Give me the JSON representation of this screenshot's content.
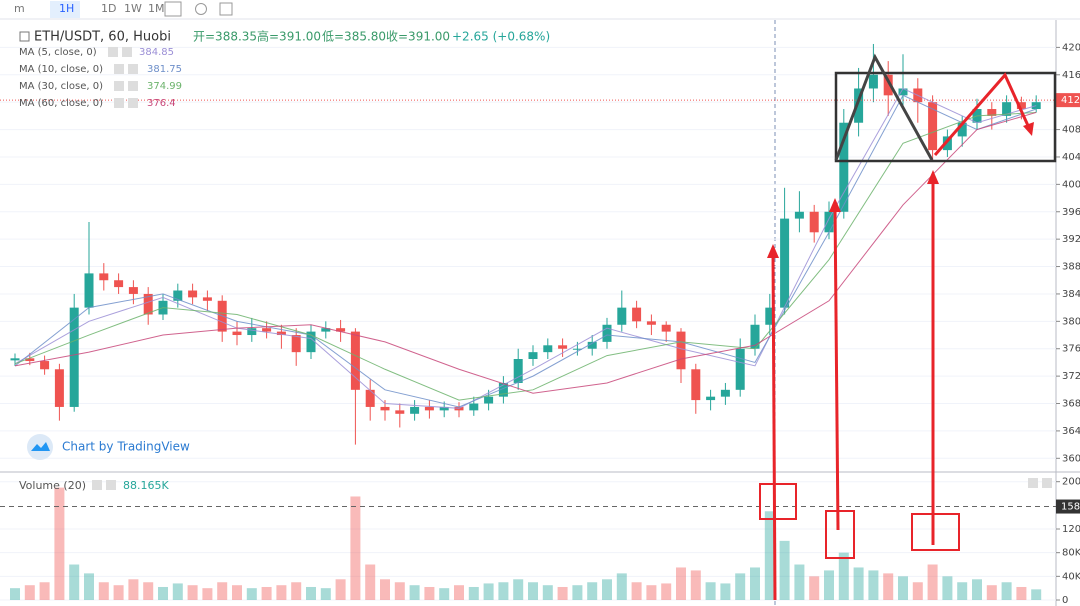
{
  "chart_data": {
    "type": "candlestick",
    "title": "ETH/USDT, 60, Huobi",
    "toolbar": [
      "m",
      "1H",
      "1D",
      "1W",
      "1M"
    ],
    "ohlc_header": [
      "开=388.35",
      "高=391.00",
      "低=385.80",
      "收=391.00",
      "+2.65 (+0.68%)"
    ],
    "watermark": "Chart by TradingView",
    "up_color": "#26a69a",
    "down_color": "#ef5350",
    "ylim": [
      358,
      424
    ],
    "yticks": [
      360,
      364,
      368,
      372,
      376,
      380,
      384,
      388,
      392,
      396,
      400,
      404,
      408,
      412,
      416,
      420
    ],
    "last_price": {
      "value": 412.3,
      "label": "412"
    },
    "candles": {
      "open": [
        374.3,
        374.6,
        374.2,
        373,
        367.5,
        382,
        387,
        386,
        385,
        384,
        381,
        383,
        384.5,
        383.5,
        383,
        378.5,
        378,
        379,
        378.5,
        378,
        375.5,
        378.5,
        379,
        378.5,
        370,
        367.5,
        367,
        366.5,
        367.5,
        367,
        367.5,
        367,
        368,
        369,
        371,
        374.5,
        375.5,
        376.5,
        376,
        376,
        377,
        379.5,
        382,
        380,
        379.5,
        378.5,
        373,
        368.5,
        369,
        370,
        376,
        379.5,
        382,
        395,
        396,
        393,
        396,
        409,
        414,
        416,
        413,
        414,
        412,
        405,
        407,
        409,
        411,
        410,
        412,
        411
      ],
      "high": [
        375.3,
        375.4,
        375,
        373.8,
        384,
        394.5,
        388.5,
        387,
        386,
        385,
        384,
        385.5,
        385.5,
        384.5,
        383.8,
        380,
        380.5,
        380,
        379.5,
        379,
        379.5,
        380,
        380.2,
        379,
        371.5,
        368.5,
        368,
        368.5,
        368.5,
        368.3,
        368.2,
        369,
        370,
        372,
        376,
        376.5,
        377.5,
        377.5,
        377,
        378,
        380.5,
        384.5,
        383,
        381,
        380,
        379,
        373.8,
        370,
        371,
        377.5,
        381,
        384,
        399.5,
        399,
        397,
        397.5,
        411,
        417,
        420.5,
        418,
        419,
        415.5,
        413,
        408,
        410,
        412.5,
        412,
        413,
        412.8,
        413
      ],
      "low": [
        373.5,
        373.6,
        372.2,
        365.5,
        366.8,
        381,
        384.5,
        384,
        382.5,
        379.5,
        380.2,
        382,
        382.5,
        381.5,
        377,
        376.5,
        377,
        377.5,
        376,
        373.5,
        374.5,
        377.5,
        377,
        362,
        365.5,
        365.5,
        364.5,
        365.5,
        365.8,
        366,
        366,
        366.2,
        367,
        368,
        370,
        373.5,
        374.5,
        374.8,
        375,
        375,
        376,
        378.5,
        379,
        378,
        377,
        371,
        366.5,
        367,
        367.8,
        369,
        375,
        378,
        381,
        393,
        391.5,
        392,
        395,
        407,
        412,
        410,
        411,
        409,
        403.5,
        404,
        405.5,
        408,
        408,
        409,
        409.5,
        410.5
      ],
      "close": [
        374.6,
        374.2,
        373,
        367.5,
        382,
        387,
        386,
        385,
        384,
        381,
        383,
        384.5,
        383.5,
        383,
        378.5,
        378,
        379,
        378.5,
        378,
        375.5,
        378.5,
        379,
        378.5,
        370,
        367.5,
        367,
        366.5,
        367.5,
        367,
        367.5,
        367,
        368,
        369,
        371,
        374.5,
        375.5,
        376.5,
        376,
        376,
        377,
        379.5,
        382,
        380,
        379.5,
        378.5,
        373,
        368.5,
        369,
        370,
        376,
        379.5,
        382,
        395,
        396,
        393,
        396,
        409,
        414,
        416,
        413,
        414,
        412,
        405,
        407,
        409,
        411,
        410,
        412,
        411,
        412
      ]
    },
    "ma": {
      "x": [
        0,
        5,
        10,
        15,
        20,
        25,
        30,
        35,
        40,
        45,
        50,
        55,
        60,
        65,
        69
      ],
      "series": [
        {
          "name": "MA (5, close, 0)",
          "last": 384.85,
          "color": "#9b8fd6",
          "values": [
            373.8,
            380,
            383.5,
            379,
            377.5,
            368,
            367.3,
            373,
            379,
            376,
            373.5,
            395,
            414,
            409,
            411.5
          ]
        },
        {
          "name": "MA (10, close, 0)",
          "last": 381.75,
          "color": "#6e8fc9",
          "values": [
            373.5,
            382,
            384,
            380,
            378,
            370,
            367.5,
            372,
            378,
            377,
            374,
            393,
            413,
            408,
            411
          ]
        },
        {
          "name": "MA (30, close, 0)",
          "last": 374.99,
          "color": "#6cb36c",
          "values": [
            373.8,
            378,
            382,
            381,
            378,
            373,
            368.5,
            370,
            375,
            377,
            376,
            389,
            406,
            410,
            410.5
          ]
        },
        {
          "name": "MA (60, close, 0)",
          "last": 376.4,
          "color": "#c8487a",
          "values": [
            373.5,
            375.5,
            378,
            379,
            379.5,
            377,
            373,
            369.5,
            371,
            374.5,
            376.5,
            383,
            397,
            408,
            410.5
          ]
        }
      ]
    },
    "volume": {
      "name": "Volume (20)",
      "last_label": "88.165K",
      "ylim": [
        0,
        213000
      ],
      "yticks": [
        0,
        {
          "value": 40000,
          "label": "40K"
        },
        {
          "value": 80000,
          "label": "80K"
        },
        {
          "value": 120000,
          "label": "120K"
        },
        {
          "value": 200000,
          "label": "200K"
        }
      ],
      "marker": {
        "value": 158000,
        "label": "158"
      },
      "values": [
        20000,
        25000,
        30000,
        190000,
        60000,
        45000,
        30000,
        25000,
        35000,
        30000,
        22000,
        28000,
        25000,
        20000,
        30000,
        25000,
        20000,
        22000,
        25000,
        30000,
        22000,
        20000,
        35000,
        175000,
        60000,
        35000,
        30000,
        25000,
        22000,
        20000,
        25000,
        22000,
        28000,
        30000,
        35000,
        30000,
        25000,
        22000,
        25000,
        30000,
        35000,
        45000,
        30000,
        25000,
        28000,
        55000,
        50000,
        30000,
        28000,
        45000,
        55000,
        150000,
        100000,
        60000,
        40000,
        50000,
        80000,
        55000,
        50000,
        45000,
        40000,
        30000,
        60000,
        40000,
        30000,
        35000,
        25000,
        30000,
        22000,
        18000
      ]
    }
  }
}
